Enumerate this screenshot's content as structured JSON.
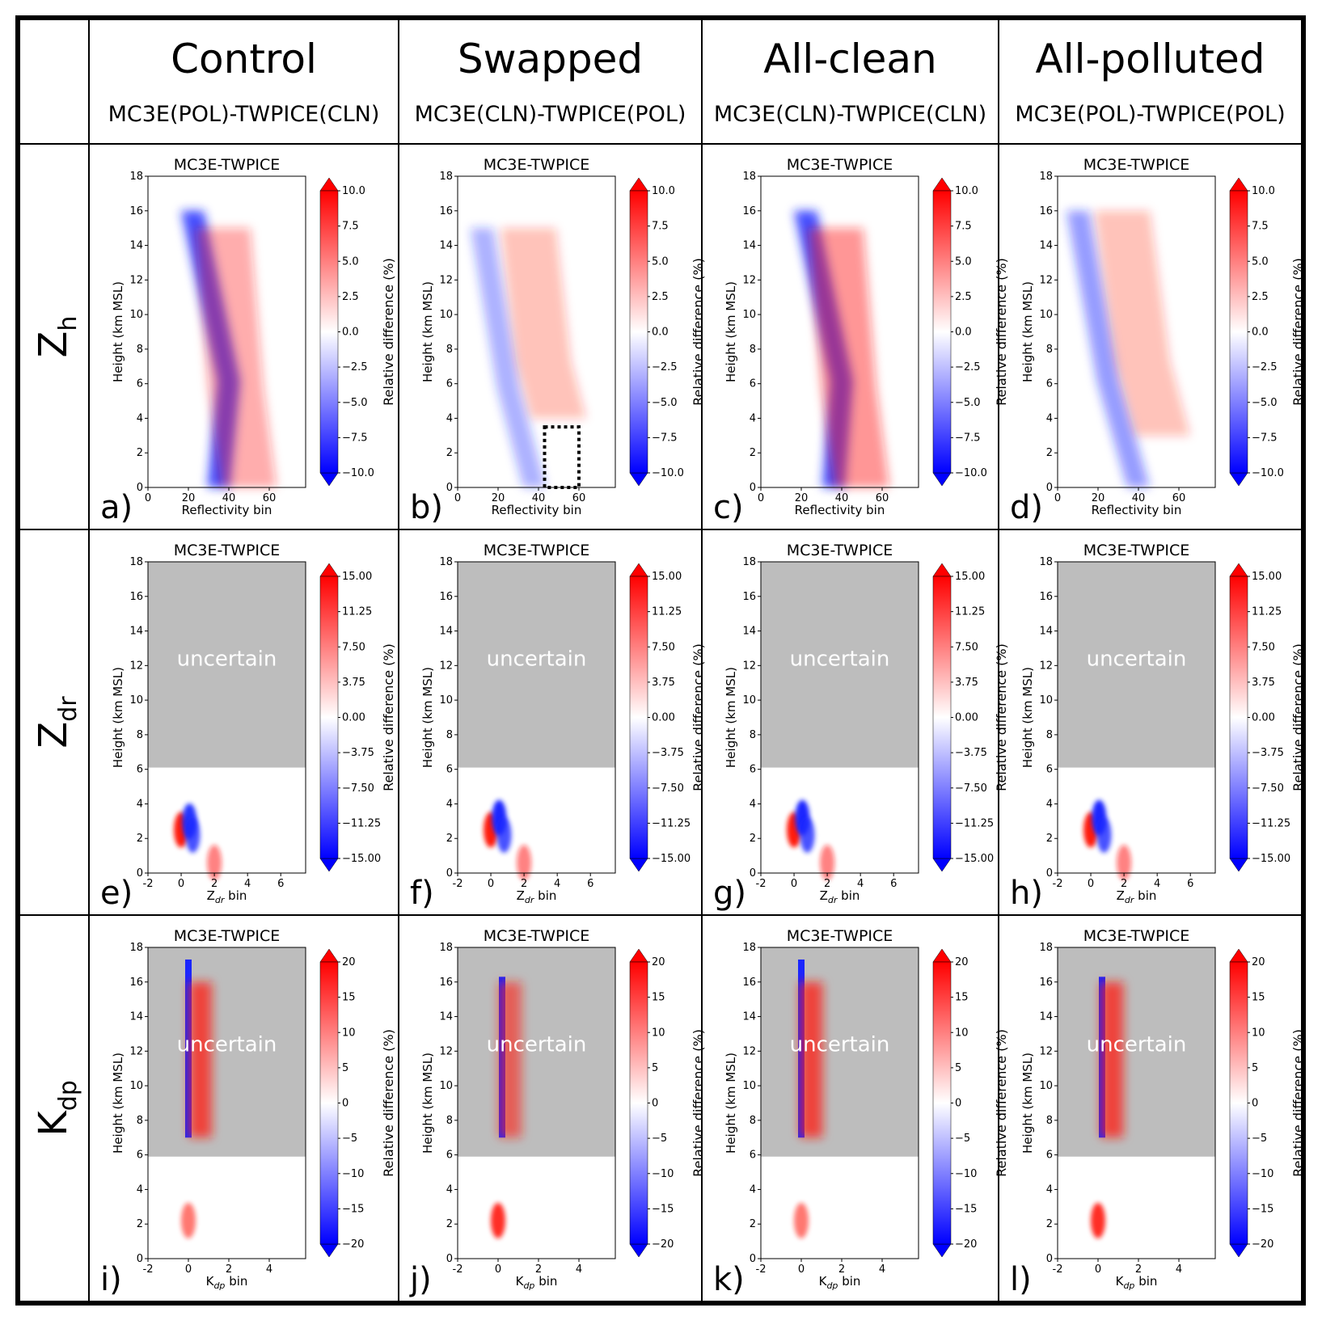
{
  "columns": [
    {
      "title": "Control",
      "subtitle": "MC3E(POL)-TWPICE(CLN)"
    },
    {
      "title": "Swapped",
      "subtitle": "MC3E(CLN)-TWPICE(POL)"
    },
    {
      "title": "All-clean",
      "subtitle": "MC3E(CLN)-TWPICE(CLN)"
    },
    {
      "title": "All-polluted",
      "subtitle": "MC3E(POL)-TWPICE(POL)"
    }
  ],
  "rows": [
    {
      "label_main": "Z",
      "label_sub": "h",
      "xlabel": "Reflectivity bin",
      "xlabel_main": "Reflectivity bin",
      "xlabel_sub": "",
      "xticks": [
        0,
        20,
        40,
        60
      ],
      "xlim": [
        0,
        78
      ],
      "cbar_ticks": [
        "10.0",
        "7.5",
        "5.0",
        "2.5",
        "0.0",
        "−2.5",
        "−5.0",
        "−7.5",
        "−10.0"
      ],
      "cbar_range": [
        -10,
        10
      ],
      "uncertain_above_km": null
    },
    {
      "label_main": "Z",
      "label_sub": "dr",
      "xlabel": "Zdr bin",
      "xlabel_main": "Z",
      "xlabel_sub": "dr",
      "xlabel_tail": " bin",
      "xticks": [
        -2,
        0,
        2,
        4,
        6
      ],
      "xlim": [
        -2,
        7.5
      ],
      "cbar_ticks": [
        "15.00",
        "11.25",
        "7.50",
        "3.75",
        "0.00",
        "−3.75",
        "−7.50",
        "−11.25",
        "−15.00"
      ],
      "cbar_range": [
        -15,
        15
      ],
      "uncertain_above_km": 6.1
    },
    {
      "label_main": "K",
      "label_sub": "dp",
      "xlabel": "Kdp bin",
      "xlabel_main": "K",
      "xlabel_sub": "dp",
      "xlabel_tail": " bin",
      "xticks": [
        -2,
        0,
        2,
        4
      ],
      "xlim": [
        -2,
        5.8
      ],
      "cbar_ticks": [
        "20",
        "15",
        "10",
        "5",
        "0",
        "−5",
        "−10",
        "−15",
        "−20"
      ],
      "cbar_range": [
        -20,
        20
      ],
      "uncertain_above_km": 5.9
    }
  ],
  "panel_title": "MC3E-TWPICE",
  "ylabel": "Height (km MSL)",
  "cbar_label": "Relative difference (%)",
  "uncertain_text": "uncertain",
  "yticks": [
    0,
    2,
    4,
    6,
    8,
    10,
    12,
    14,
    16,
    18
  ],
  "ylim": [
    0,
    18
  ],
  "panel_letters": [
    "a)",
    "b)",
    "c)",
    "d)",
    "e)",
    "f)",
    "g)",
    "h)",
    "i)",
    "j)",
    "k)",
    "l)"
  ],
  "colors": {
    "positive": "#e8241c",
    "negative": "#1c2de8",
    "neutral": "#ffffff",
    "uncertain_mask": "#bdbdbd",
    "frame": "#000000"
  },
  "chart_data": [
    {
      "type": "heatmap",
      "panel": "a",
      "title": "MC3E-TWPICE",
      "xlabel": "Reflectivity bin",
      "ylabel": "Height (km MSL)",
      "ylim": [
        0,
        18
      ],
      "colorbar_range": [
        -10,
        10
      ],
      "colorbar_label": "Relative difference (%)",
      "features": [
        {
          "kind": "negative band",
          "x_bottom": 35,
          "x_mid": 40,
          "x_top": 22,
          "from_km": 0,
          "to_km": 16,
          "value": -9
        },
        {
          "kind": "positive band",
          "x_bottom": 50,
          "x_top": 37,
          "from_km": 0,
          "to_km": 15,
          "value": 4
        }
      ]
    },
    {
      "type": "heatmap",
      "panel": "b",
      "title": "MC3E-TWPICE",
      "xlabel": "Reflectivity bin",
      "ylabel": "Height (km MSL)",
      "ylim": [
        0,
        18
      ],
      "colorbar_range": [
        -10,
        10
      ],
      "colorbar_label": "Relative difference (%)",
      "features": [
        {
          "kind": "negative band",
          "x_bottom": 38,
          "x_top": 12,
          "from_km": 0,
          "to_km": 15,
          "value": -4
        },
        {
          "kind": "positive band",
          "x_bottom": 50,
          "x_top": 35,
          "from_km": 4,
          "to_km": 15,
          "value": 3
        }
      ],
      "annotation": {
        "kind": "dotted box",
        "x": [
          43,
          60
        ],
        "y_km": [
          0,
          3.5
        ]
      }
    },
    {
      "type": "heatmap",
      "panel": "c",
      "title": "MC3E-TWPICE",
      "xlabel": "Reflectivity bin",
      "ylabel": "Height (km MSL)",
      "ylim": [
        0,
        18
      ],
      "colorbar_range": [
        -10,
        10
      ],
      "colorbar_label": "Relative difference (%)",
      "features": [
        {
          "kind": "negative band",
          "x_bottom": 36,
          "x_mid": 40,
          "x_top": 22,
          "from_km": 0,
          "to_km": 16,
          "value": -9
        },
        {
          "kind": "positive band",
          "x_bottom": 50,
          "x_top": 37,
          "from_km": 0,
          "to_km": 15,
          "value": 5
        }
      ]
    },
    {
      "type": "heatmap",
      "panel": "d",
      "title": "MC3E-TWPICE",
      "xlabel": "Reflectivity bin",
      "ylabel": "Height (km MSL)",
      "ylim": [
        0,
        18
      ],
      "colorbar_range": [
        -10,
        10
      ],
      "colorbar_label": "Relative difference (%)",
      "features": [
        {
          "kind": "negative band",
          "x_bottom": 40,
          "x_top": 10,
          "from_km": 0,
          "to_km": 16,
          "value": -5
        },
        {
          "kind": "positive band",
          "x_bottom": 52,
          "x_top": 32,
          "from_km": 3,
          "to_km": 16,
          "value": 3
        }
      ]
    },
    {
      "type": "heatmap",
      "panel": "e",
      "title": "MC3E-TWPICE",
      "xlabel": "Zdr bin",
      "ylabel": "Height (km MSL)",
      "ylim": [
        0,
        18
      ],
      "colorbar_range": [
        -15,
        15
      ],
      "colorbar_label": "Relative difference (%)",
      "features": [
        {
          "kind": "positive",
          "x": 0,
          "y_km": 2.5,
          "value": 15
        },
        {
          "kind": "negative",
          "x": 0.5,
          "y_km": 3,
          "value": -14
        },
        {
          "kind": "negative",
          "x": 0.7,
          "y_km": 2.2,
          "value": -12
        },
        {
          "kind": "positive",
          "x": 2,
          "y_km": 0.6,
          "value": 8
        }
      ]
    },
    {
      "type": "heatmap",
      "panel": "f",
      "title": "MC3E-TWPICE",
      "xlabel": "Zdr bin",
      "ylabel": "Height (km MSL)",
      "ylim": [
        0,
        18
      ],
      "colorbar_range": [
        -15,
        15
      ],
      "colorbar_label": "Relative difference (%)",
      "features": [
        {
          "kind": "positive",
          "x": 0,
          "y_km": 2.5,
          "value": 15
        },
        {
          "kind": "negative",
          "x": 0.5,
          "y_km": 3.2,
          "value": -15
        },
        {
          "kind": "negative",
          "x": 0.8,
          "y_km": 2.2,
          "value": -12
        },
        {
          "kind": "positive",
          "x": 2,
          "y_km": 0.6,
          "value": 8
        }
      ]
    },
    {
      "type": "heatmap",
      "panel": "g",
      "title": "MC3E-TWPICE",
      "xlabel": "Zdr bin",
      "ylabel": "Height (km MSL)",
      "ylim": [
        0,
        18
      ],
      "colorbar_range": [
        -15,
        15
      ],
      "colorbar_label": "Relative difference (%)",
      "features": [
        {
          "kind": "positive",
          "x": 0,
          "y_km": 2.5,
          "value": 15
        },
        {
          "kind": "negative",
          "x": 0.5,
          "y_km": 3.2,
          "value": -15
        },
        {
          "kind": "negative",
          "x": 0.8,
          "y_km": 2.2,
          "value": -12
        },
        {
          "kind": "positive",
          "x": 2,
          "y_km": 0.6,
          "value": 8
        }
      ]
    },
    {
      "type": "heatmap",
      "panel": "h",
      "title": "MC3E-TWPICE",
      "xlabel": "Zdr bin",
      "ylabel": "Height (km MSL)",
      "ylim": [
        0,
        18
      ],
      "colorbar_range": [
        -15,
        15
      ],
      "colorbar_label": "Relative difference (%)",
      "features": [
        {
          "kind": "positive",
          "x": 0,
          "y_km": 2.5,
          "value": 15
        },
        {
          "kind": "negative",
          "x": 0.5,
          "y_km": 3.2,
          "value": -15
        },
        {
          "kind": "negative",
          "x": 0.8,
          "y_km": 2.2,
          "value": -12
        },
        {
          "kind": "positive",
          "x": 2,
          "y_km": 0.6,
          "value": 8
        }
      ]
    },
    {
      "type": "heatmap",
      "panel": "i",
      "title": "MC3E-TWPICE",
      "xlabel": "Kdp bin",
      "ylabel": "Height (km MSL)",
      "ylim": [
        0,
        18
      ],
      "colorbar_range": [
        -20,
        20
      ],
      "colorbar_label": "Relative difference (%)",
      "features": [
        {
          "kind": "negative line",
          "x": 0,
          "from_km": 7,
          "to_km": 17.3,
          "value": -20
        },
        {
          "kind": "positive band",
          "x": 0.6,
          "from_km": 7,
          "to_km": 16,
          "value": 15
        },
        {
          "kind": "positive",
          "x": 0,
          "y_km": 2.2,
          "value": 12
        }
      ]
    },
    {
      "type": "heatmap",
      "panel": "j",
      "title": "MC3E-TWPICE",
      "xlabel": "Kdp bin",
      "ylabel": "Height (km MSL)",
      "ylim": [
        0,
        18
      ],
      "colorbar_range": [
        -20,
        20
      ],
      "colorbar_label": "Relative difference (%)",
      "features": [
        {
          "kind": "negative line",
          "x": 0.2,
          "from_km": 7,
          "to_km": 16.3,
          "value": -20
        },
        {
          "kind": "positive band",
          "x": 0.6,
          "from_km": 7,
          "to_km": 16,
          "value": 12
        },
        {
          "kind": "positive",
          "x": 0,
          "y_km": 2.2,
          "value": 18
        }
      ]
    },
    {
      "type": "heatmap",
      "panel": "k",
      "title": "MC3E-TWPICE",
      "xlabel": "Kdp bin",
      "ylabel": "Height (km MSL)",
      "ylim": [
        0,
        18
      ],
      "colorbar_range": [
        -20,
        20
      ],
      "colorbar_label": "Relative difference (%)",
      "features": [
        {
          "kind": "negative line",
          "x": 0,
          "from_km": 7,
          "to_km": 17.3,
          "value": -20
        },
        {
          "kind": "positive band",
          "x": 0.5,
          "from_km": 7,
          "to_km": 16,
          "value": 15
        },
        {
          "kind": "positive",
          "x": 0,
          "y_km": 2.2,
          "value": 12
        }
      ]
    },
    {
      "type": "heatmap",
      "panel": "l",
      "title": "MC3E-TWPICE",
      "xlabel": "Kdp bin",
      "ylabel": "Height (km MSL)",
      "ylim": [
        0,
        18
      ],
      "colorbar_range": [
        -20,
        20
      ],
      "colorbar_label": "Relative difference (%)",
      "features": [
        {
          "kind": "negative line",
          "x": 0.2,
          "from_km": 7,
          "to_km": 16.3,
          "value": -20
        },
        {
          "kind": "positive band",
          "x": 0.7,
          "from_km": 7,
          "to_km": 16,
          "value": 15
        },
        {
          "kind": "positive",
          "x": 0,
          "y_km": 2.2,
          "value": 18
        }
      ]
    }
  ]
}
